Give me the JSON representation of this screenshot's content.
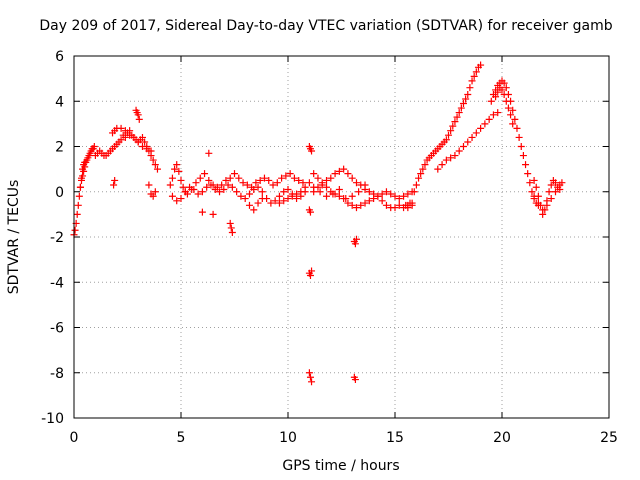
{
  "chart_data": {
    "type": "scatter",
    "title": "Day 209 of 2017, Sidereal Day-to-day VTEC variation (SDTVAR) for receiver gamb",
    "xlabel": "GPS time / hours",
    "ylabel": "SDTVAR / TECUs",
    "xlim": [
      0,
      25
    ],
    "ylim": [
      -10,
      6
    ],
    "xticks": [
      0,
      5,
      10,
      15,
      20,
      25
    ],
    "yticks": [
      -10,
      -8,
      -6,
      -4,
      -2,
      0,
      2,
      4,
      6
    ],
    "x_tick_labels": [
      "0",
      "5",
      "10",
      "15",
      "20",
      "25"
    ],
    "y_tick_labels": [
      "-10",
      "-8",
      "-6",
      "-4",
      "-2",
      "0",
      "2",
      "4",
      "6"
    ],
    "grid": true,
    "marker": "+",
    "marker_color": "#ff0000",
    "series": [
      {
        "name": "SDTVAR",
        "x": [
          0.0,
          0.05,
          0.1,
          0.15,
          0.2,
          0.25,
          0.3,
          0.35,
          0.4,
          0.45,
          0.5,
          0.55,
          0.6,
          0.65,
          0.7,
          0.75,
          0.8,
          0.85,
          0.9,
          0.95,
          0.3,
          0.35,
          0.4,
          0.45,
          0.5,
          1.0,
          1.1,
          1.2,
          1.3,
          1.4,
          1.5,
          1.6,
          1.7,
          1.8,
          1.9,
          2.0,
          2.1,
          2.2,
          2.3,
          2.4,
          2.5,
          2.6,
          2.7,
          2.8,
          2.9,
          3.0,
          3.1,
          3.2,
          3.3,
          3.4,
          3.5,
          3.6,
          3.7,
          3.8,
          3.9,
          1.8,
          1.9,
          2.0,
          2.2,
          2.4,
          2.6,
          2.8,
          3.0,
          3.2,
          3.4,
          3.6,
          2.9,
          2.95,
          3.0,
          3.05,
          1.85,
          1.9,
          3.5,
          3.6,
          3.7,
          3.8,
          4.5,
          4.6,
          4.7,
          4.8,
          4.9,
          5.0,
          5.1,
          5.2,
          5.3,
          5.5,
          5.7,
          5.9,
          6.1,
          6.3,
          6.5,
          6.7,
          6.9,
          7.1,
          7.3,
          7.5,
          7.7,
          7.9,
          8.1,
          8.3,
          8.5,
          8.7,
          8.9,
          9.1,
          9.3,
          9.5,
          9.7,
          9.9,
          10.1,
          10.3,
          10.5,
          10.7,
          4.6,
          4.8,
          5.0,
          5.2,
          5.4,
          5.6,
          5.8,
          6.0,
          6.2,
          6.4,
          6.6,
          6.8,
          7.0,
          7.2,
          7.4,
          7.6,
          7.8,
          8.0,
          8.2,
          8.4,
          8.6,
          8.8,
          9.0,
          9.2,
          9.4,
          9.6,
          9.8,
          10.0,
          10.2,
          10.4,
          10.6,
          10.8,
          6.0,
          6.5,
          6.3,
          7.3,
          7.35,
          7.4,
          8.2,
          8.4,
          8.6,
          8.8,
          9.6,
          9.8,
          10.0,
          10.2,
          10.4,
          10.6,
          10.8,
          11.0,
          11.0,
          11.05,
          11.1,
          11.0,
          11.05,
          11.1,
          11.0,
          11.05,
          11.1,
          11.0,
          11.05,
          11.2,
          11.4,
          11.6,
          11.8,
          12.0,
          12.2,
          12.4,
          12.6,
          12.8,
          13.0,
          13.2,
          13.4,
          13.6,
          13.8,
          14.0,
          14.2,
          14.4,
          14.6,
          14.8,
          15.0,
          15.2,
          15.4,
          15.6,
          15.8,
          11.2,
          11.4,
          11.6,
          11.8,
          12.0,
          12.2,
          12.4,
          12.6,
          12.8,
          13.0,
          13.2,
          13.4,
          13.6,
          13.8,
          14.0,
          14.2,
          14.4,
          14.6,
          14.8,
          15.0,
          15.2,
          15.4,
          15.6,
          15.8,
          11.2,
          11.5,
          11.8,
          12.1,
          12.4,
          12.7,
          13.0,
          13.3,
          13.6,
          13.1,
          13.15,
          13.2,
          13.1,
          13.15,
          15.9,
          16.0,
          16.1,
          16.2,
          16.3,
          16.4,
          16.5,
          16.6,
          16.7,
          16.8,
          16.9,
          17.0,
          17.1,
          17.2,
          17.3,
          17.4,
          17.5,
          17.6,
          17.7,
          17.8,
          17.9,
          18.0,
          18.1,
          18.2,
          18.3,
          18.4,
          18.5,
          18.6,
          18.7,
          18.8,
          18.9,
          19.0,
          15.5,
          15.6,
          15.7,
          15.8,
          17.0,
          17.2,
          17.4,
          17.6,
          17.8,
          18.0,
          18.2,
          18.4,
          18.6,
          18.8,
          19.0,
          19.2,
          19.4,
          19.6,
          19.8,
          19.5,
          19.6,
          19.7,
          19.8,
          19.9,
          20.0,
          20.1,
          20.2,
          20.3,
          20.4,
          20.5,
          20.6,
          20.7,
          20.8,
          20.9,
          21.0,
          21.1,
          21.2,
          21.3,
          21.4,
          21.5,
          21.6,
          21.7,
          19.7,
          19.8,
          19.9,
          20.0,
          20.1,
          20.2,
          20.3,
          20.4,
          20.5,
          21.5,
          21.6,
          21.7,
          21.8,
          21.9,
          22.0,
          22.1,
          22.2,
          22.3,
          22.4,
          22.5,
          22.6,
          22.7,
          22.8,
          21.5,
          21.7,
          21.9,
          22.1,
          22.3,
          22.5,
          22.7
        ],
        "y": [
          -1.9,
          -1.7,
          -1.4,
          -1.0,
          -0.6,
          -0.2,
          0.2,
          0.5,
          0.7,
          0.9,
          1.1,
          1.3,
          1.4,
          1.5,
          1.6,
          1.7,
          1.8,
          1.9,
          1.9,
          2.0,
          0.2,
          0.6,
          1.0,
          1.2,
          1.3,
          1.6,
          1.7,
          1.8,
          1.7,
          1.6,
          1.6,
          1.7,
          1.8,
          1.9,
          2.0,
          2.1,
          2.2,
          2.3,
          2.5,
          2.4,
          2.6,
          2.7,
          2.5,
          2.4,
          2.3,
          2.2,
          2.3,
          2.4,
          2.2,
          2.0,
          1.8,
          1.6,
          1.4,
          1.2,
          1.0,
          2.6,
          2.7,
          2.8,
          2.8,
          2.7,
          2.5,
          2.4,
          2.2,
          2.0,
          1.9,
          1.8,
          3.6,
          3.5,
          3.4,
          3.2,
          0.3,
          0.5,
          0.3,
          -0.1,
          -0.2,
          0.0,
          0.3,
          0.6,
          1.0,
          1.2,
          0.9,
          0.5,
          0.2,
          0.0,
          -0.1,
          0.1,
          0.4,
          0.6,
          0.8,
          0.5,
          0.3,
          0.2,
          0.3,
          0.5,
          0.6,
          0.8,
          0.6,
          0.4,
          0.3,
          0.2,
          0.4,
          0.5,
          0.6,
          0.5,
          0.3,
          0.4,
          0.6,
          0.7,
          0.8,
          0.6,
          0.5,
          0.4,
          -0.2,
          -0.4,
          -0.3,
          0.0,
          0.2,
          0.1,
          -0.1,
          0.0,
          0.2,
          0.3,
          0.1,
          0.0,
          0.1,
          0.3,
          0.2,
          0.0,
          -0.2,
          -0.3,
          -0.1,
          0.1,
          0.2,
          0.0,
          -0.3,
          -0.5,
          -0.4,
          -0.2,
          0.0,
          0.1,
          -0.1,
          -0.3,
          -0.2,
          0.0,
          -0.9,
          -1.0,
          1.7,
          -1.4,
          -1.6,
          -1.8,
          -0.6,
          -0.8,
          -0.5,
          -0.3,
          -0.5,
          -0.4,
          -0.3,
          -0.2,
          -0.1,
          0.0,
          0.2,
          0.4,
          2.0,
          1.9,
          1.8,
          -3.6,
          -3.7,
          -3.5,
          -8.0,
          -8.2,
          -8.4,
          -0.8,
          -0.9,
          0.8,
          0.6,
          0.4,
          0.2,
          0.0,
          -0.1,
          -0.2,
          -0.3,
          -0.5,
          -0.6,
          -0.7,
          -0.6,
          -0.5,
          -0.4,
          -0.3,
          -0.2,
          -0.1,
          0.0,
          -0.1,
          -0.2,
          -0.3,
          -0.2,
          -0.1,
          0.0,
          0.0,
          0.2,
          0.3,
          0.5,
          0.6,
          0.8,
          0.9,
          1.0,
          0.8,
          0.6,
          0.4,
          0.3,
          0.1,
          0.0,
          -0.1,
          -0.2,
          -0.4,
          -0.6,
          -0.7,
          -0.7,
          -0.6,
          -0.7,
          -0.6,
          -0.5,
          0.2,
          0.0,
          -0.2,
          -0.1,
          0.1,
          -0.3,
          -0.2,
          0.0,
          0.3,
          -2.2,
          -2.3,
          -2.1,
          -8.2,
          -8.3,
          0.0,
          0.3,
          0.6,
          0.8,
          1.0,
          1.2,
          1.4,
          1.5,
          1.6,
          1.7,
          1.8,
          1.9,
          2.0,
          2.1,
          2.2,
          2.3,
          2.5,
          2.7,
          2.9,
          3.1,
          3.3,
          3.5,
          3.7,
          3.9,
          4.1,
          4.3,
          4.6,
          4.9,
          5.1,
          5.3,
          5.5,
          5.6,
          -0.6,
          -0.7,
          -0.5,
          -0.6,
          1.0,
          1.2,
          1.4,
          1.5,
          1.6,
          1.8,
          2.0,
          2.2,
          2.4,
          2.6,
          2.8,
          3.0,
          3.2,
          3.4,
          3.5,
          4.0,
          4.3,
          4.5,
          4.7,
          4.8,
          4.9,
          4.8,
          4.6,
          4.3,
          4.0,
          3.6,
          3.2,
          2.8,
          2.4,
          2.0,
          1.6,
          1.2,
          0.8,
          0.4,
          0.0,
          -0.3,
          -0.5,
          -0.6,
          4.2,
          4.4,
          4.6,
          4.5,
          4.3,
          4.0,
          3.7,
          3.4,
          3.0,
          0.5,
          0.2,
          -0.2,
          -0.6,
          -1.0,
          -0.8,
          -0.4,
          0.0,
          0.3,
          0.5,
          0.4,
          0.2,
          0.3,
          0.4,
          -0.2,
          -0.5,
          -0.8,
          -0.6,
          -0.3,
          0.0,
          0.1
        ]
      }
    ]
  }
}
